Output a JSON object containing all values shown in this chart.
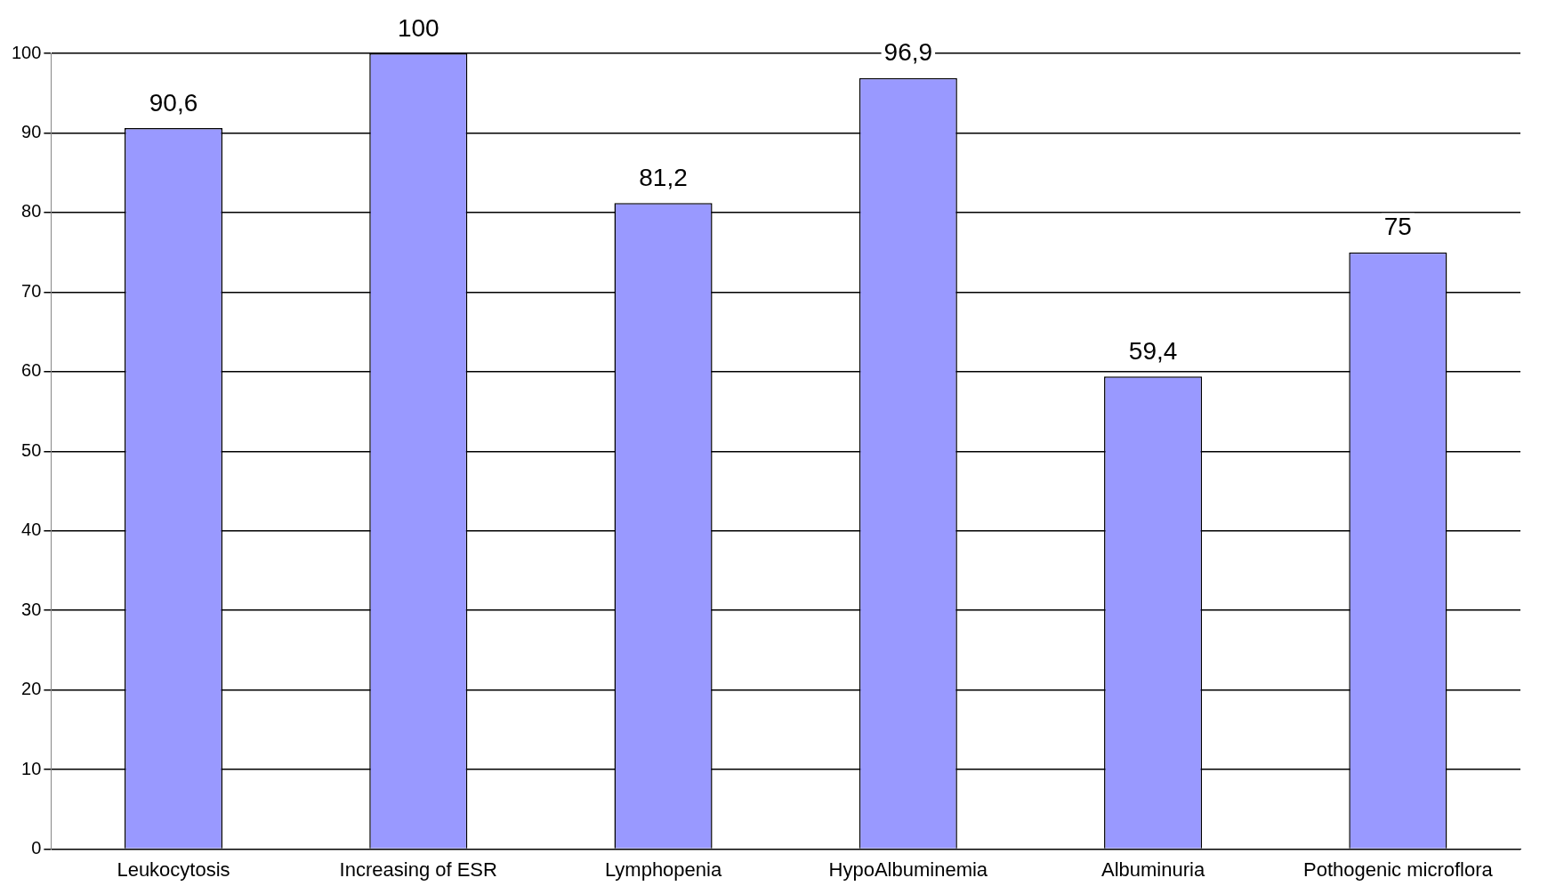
{
  "chart_data": {
    "type": "bar",
    "categories": [
      "Leukocytosis",
      "Increasing of ESR",
      "Lymphopenia",
      "HypoAlbuminemia",
      "Albuminuria",
      "Pothogenic microflora"
    ],
    "values": [
      90.6,
      100,
      81.2,
      96.9,
      59.4,
      75
    ],
    "value_labels": [
      "90,6",
      "100",
      "81,2",
      "96,9",
      "59,4",
      "75"
    ],
    "color": "#9999ff",
    "ylim": [
      0,
      100
    ],
    "yticks": [
      0,
      10,
      20,
      30,
      40,
      50,
      60,
      70,
      80,
      90,
      100
    ],
    "grid": "y",
    "legend": false
  }
}
